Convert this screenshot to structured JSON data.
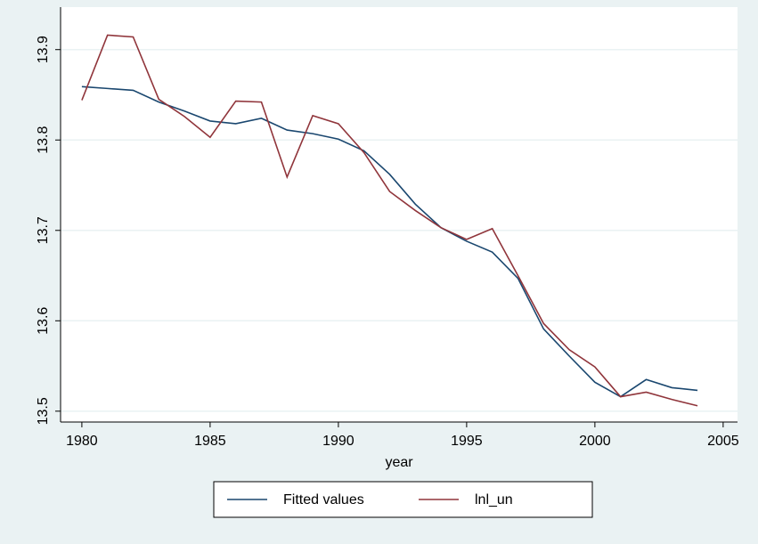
{
  "chart_data": {
    "type": "line",
    "x": [
      1980,
      1981,
      1982,
      1983,
      1984,
      1985,
      1986,
      1987,
      1988,
      1989,
      1990,
      1991,
      1992,
      1993,
      1994,
      1995,
      1996,
      1997,
      1998,
      1999,
      2000,
      2001,
      2002,
      2003,
      2004
    ],
    "series": [
      {
        "name": "Fitted values",
        "color": "#1a476f",
        "values": [
          13.859,
          13.857,
          13.855,
          13.842,
          13.832,
          13.821,
          13.818,
          13.824,
          13.811,
          13.807,
          13.801,
          13.788,
          13.762,
          13.729,
          13.703,
          13.688,
          13.676,
          13.647,
          13.591,
          13.561,
          13.532,
          13.516,
          13.535,
          13.526,
          13.523
        ]
      },
      {
        "name": "lnl_un",
        "color": "#90353b",
        "values": [
          13.844,
          13.916,
          13.914,
          13.845,
          13.826,
          13.803,
          13.843,
          13.842,
          13.759,
          13.827,
          13.818,
          13.786,
          13.743,
          13.722,
          13.703,
          13.69,
          13.702,
          13.65,
          13.597,
          13.568,
          13.549,
          13.516,
          13.521,
          13.513,
          13.506
        ]
      }
    ],
    "xlabel": "year",
    "xlim": [
      1979.17,
      2005.56
    ],
    "xticks": [
      1980,
      1985,
      1990,
      1995,
      2000,
      2005
    ],
    "ylim": [
      13.488,
      13.947
    ],
    "yticks": [
      13.5,
      13.6,
      13.7,
      13.8,
      13.9
    ],
    "grid": true,
    "legend": "bottom"
  }
}
